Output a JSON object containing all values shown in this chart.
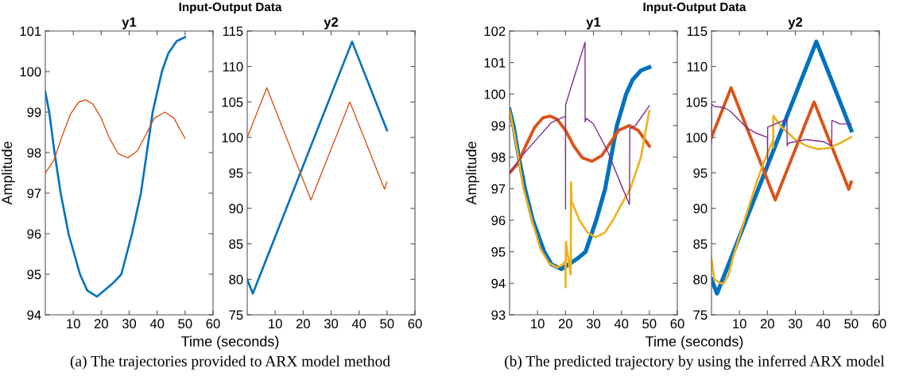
{
  "chart_data": [
    {
      "type": "line",
      "title": "y1",
      "xlabel": "Time (seconds)",
      "ylabel": "Amplitude",
      "annotations": [
        "Input-Output Data",
        "(a) The trajectories provided to ARX model method"
      ],
      "xlim": [
        0,
        60
      ],
      "xticks": [
        10,
        20,
        30,
        40,
        50,
        60
      ],
      "ylim": [
        94,
        101
      ],
      "yticks": [
        94,
        95,
        96,
        97,
        98,
        99,
        100,
        101
      ],
      "grid": false,
      "series": [
        {
          "color": "#0072bd",
          "x": [
            0,
            1.4,
            3.3,
            5.5,
            8.3,
            12.4,
            15,
            18.5,
            22,
            24.5,
            27.2,
            31,
            34.2,
            36.3,
            38.4,
            41.7,
            44,
            47,
            50
          ],
          "values": [
            99.5,
            99,
            98,
            97,
            96,
            95,
            94.6,
            94.45,
            94.65,
            94.8,
            95,
            96,
            97,
            98,
            99,
            100,
            100.45,
            100.75,
            100.85
          ]
        },
        {
          "color": "#d95319",
          "x": [
            0,
            3,
            6,
            9,
            12,
            14.5,
            17,
            20,
            23,
            26,
            29.5,
            33,
            36,
            39,
            42.8,
            46,
            50
          ],
          "values": [
            97.5,
            97.8,
            98.4,
            98.95,
            99.25,
            99.3,
            99.2,
            98.85,
            98.35,
            97.98,
            97.87,
            98.05,
            98.45,
            98.85,
            99.0,
            98.85,
            98.35
          ]
        }
      ]
    },
    {
      "type": "line",
      "title": "y2",
      "xlim": [
        0,
        60
      ],
      "xticks": [
        10,
        20,
        30,
        40,
        50,
        60
      ],
      "ylim": [
        75,
        115
      ],
      "yticks": [
        75,
        80,
        85,
        90,
        95,
        100,
        105,
        110,
        115
      ],
      "grid": false,
      "series": [
        {
          "color": "#0072bd",
          "x": [
            0,
            2,
            37.5,
            50
          ],
          "values": [
            80,
            78,
            113.5,
            101
          ]
        },
        {
          "color": "#d95319",
          "x": [
            0,
            7,
            22.8,
            36.7,
            49.1,
            50
          ],
          "values": [
            100,
            107,
            91.2,
            105,
            92.7,
            93.7
          ]
        }
      ]
    },
    {
      "type": "line",
      "title": "y1",
      "xlabel": "Time (seconds)",
      "ylabel": "Amplitude",
      "annotations": [
        "Input-Output Data",
        "(b) The predicted trajectory by using the inferred ARX model"
      ],
      "xlim": [
        0,
        60
      ],
      "xticks": [
        10,
        20,
        30,
        40,
        50,
        60
      ],
      "ylim": [
        93,
        102
      ],
      "yticks": [
        93,
        94,
        95,
        96,
        97,
        98,
        99,
        100,
        101,
        102
      ],
      "grid": false,
      "series": [
        {
          "color": "#0072bd",
          "x": [
            0,
            1.4,
            3.3,
            5.5,
            8.3,
            12.4,
            15,
            18.5,
            22,
            24.5,
            27.2,
            31,
            34.2,
            36.3,
            38.4,
            41.7,
            44,
            47,
            50
          ],
          "values": [
            99.5,
            99,
            98,
            97,
            96,
            95,
            94.6,
            94.45,
            94.65,
            94.8,
            95,
            96,
            97,
            98,
            99,
            100,
            100.45,
            100.75,
            100.85
          ]
        },
        {
          "color": "#d95319",
          "x": [
            0,
            3,
            6,
            9,
            12,
            14.5,
            17,
            20,
            23,
            26,
            29.5,
            33,
            36,
            39,
            42.8,
            46,
            50
          ],
          "values": [
            97.5,
            97.8,
            98.4,
            98.95,
            99.25,
            99.3,
            99.2,
            98.85,
            98.35,
            97.98,
            97.87,
            98.05,
            98.45,
            98.85,
            99.0,
            98.85,
            98.35
          ]
        },
        {
          "color": "#edb120",
          "x": [
            0,
            2,
            5,
            8,
            11,
            14,
            17,
            19,
            20,
            20.05,
            20.1,
            21.9,
            22.0,
            22.2,
            25,
            28,
            30.8,
            34,
            37,
            40,
            43.2,
            47,
            50
          ],
          "values": [
            99.5,
            98.6,
            97.0,
            96.0,
            95.1,
            94.65,
            94.5,
            94.6,
            94.7,
            93.87,
            95.32,
            94.28,
            97.21,
            96.6,
            96.0,
            95.6,
            95.46,
            95.6,
            96.0,
            96.5,
            97.0,
            98.0,
            99.47
          ]
        },
        {
          "color": "#7e2f8e",
          "x": [
            0,
            5,
            10,
            15,
            20,
            20.02,
            20.05,
            27,
            27.02,
            27.5,
            30,
            35,
            40,
            42.9,
            43.0,
            45,
            50
          ],
          "values": [
            97.5,
            98.1,
            98.6,
            99.1,
            99.3,
            96.35,
            99.66,
            101.64,
            99.12,
            99.23,
            99.05,
            98.2,
            97.1,
            96.5,
            98.9,
            99.0,
            99.63
          ]
        }
      ]
    },
    {
      "type": "line",
      "title": "y2",
      "xlim": [
        0,
        60
      ],
      "xticks": [
        10,
        20,
        30,
        40,
        50,
        60
      ],
      "ylim": [
        75,
        115
      ],
      "yticks": [
        75,
        80,
        85,
        90,
        95,
        100,
        105,
        110,
        115
      ],
      "grid": false,
      "series": [
        {
          "color": "#0072bd",
          "x": [
            0,
            2,
            37.5,
            50
          ],
          "values": [
            80,
            78,
            113.5,
            101
          ]
        },
        {
          "color": "#d95319",
          "x": [
            0,
            7,
            22.8,
            36.7,
            49.1,
            50
          ],
          "values": [
            100,
            107,
            91.2,
            105,
            92.7,
            93.7
          ]
        },
        {
          "color": "#edb120",
          "x": [
            0,
            1,
            2.5,
            4.2,
            6,
            8,
            11.7,
            15,
            18,
            20,
            22,
            22.05,
            22.1,
            25,
            30,
            34,
            38,
            42,
            46,
            50
          ],
          "values": [
            82.9,
            80,
            79.6,
            79.35,
            80.5,
            83.5,
            88.2,
            92.3,
            95.8,
            97.7,
            99.6,
            98.6,
            103.05,
            101.5,
            99.7,
            98.8,
            98.35,
            98.5,
            99.2,
            100.05
          ]
        },
        {
          "color": "#7e2f8e",
          "x": [
            0,
            0.05,
            1,
            3,
            5,
            7,
            12.6,
            16,
            20,
            20.05,
            20.1,
            27,
            27.05,
            27.5,
            34,
            40,
            43,
            43.05,
            46,
            50
          ],
          "values": [
            99.2,
            104.7,
            104.35,
            104.3,
            104.1,
            103.6,
            101.35,
            100.6,
            100.0,
            95.45,
            101.45,
            102.57,
            98.8,
            99.2,
            99.7,
            99.4,
            98.8,
            102.4,
            101.9,
            101.9
          ]
        }
      ]
    }
  ]
}
